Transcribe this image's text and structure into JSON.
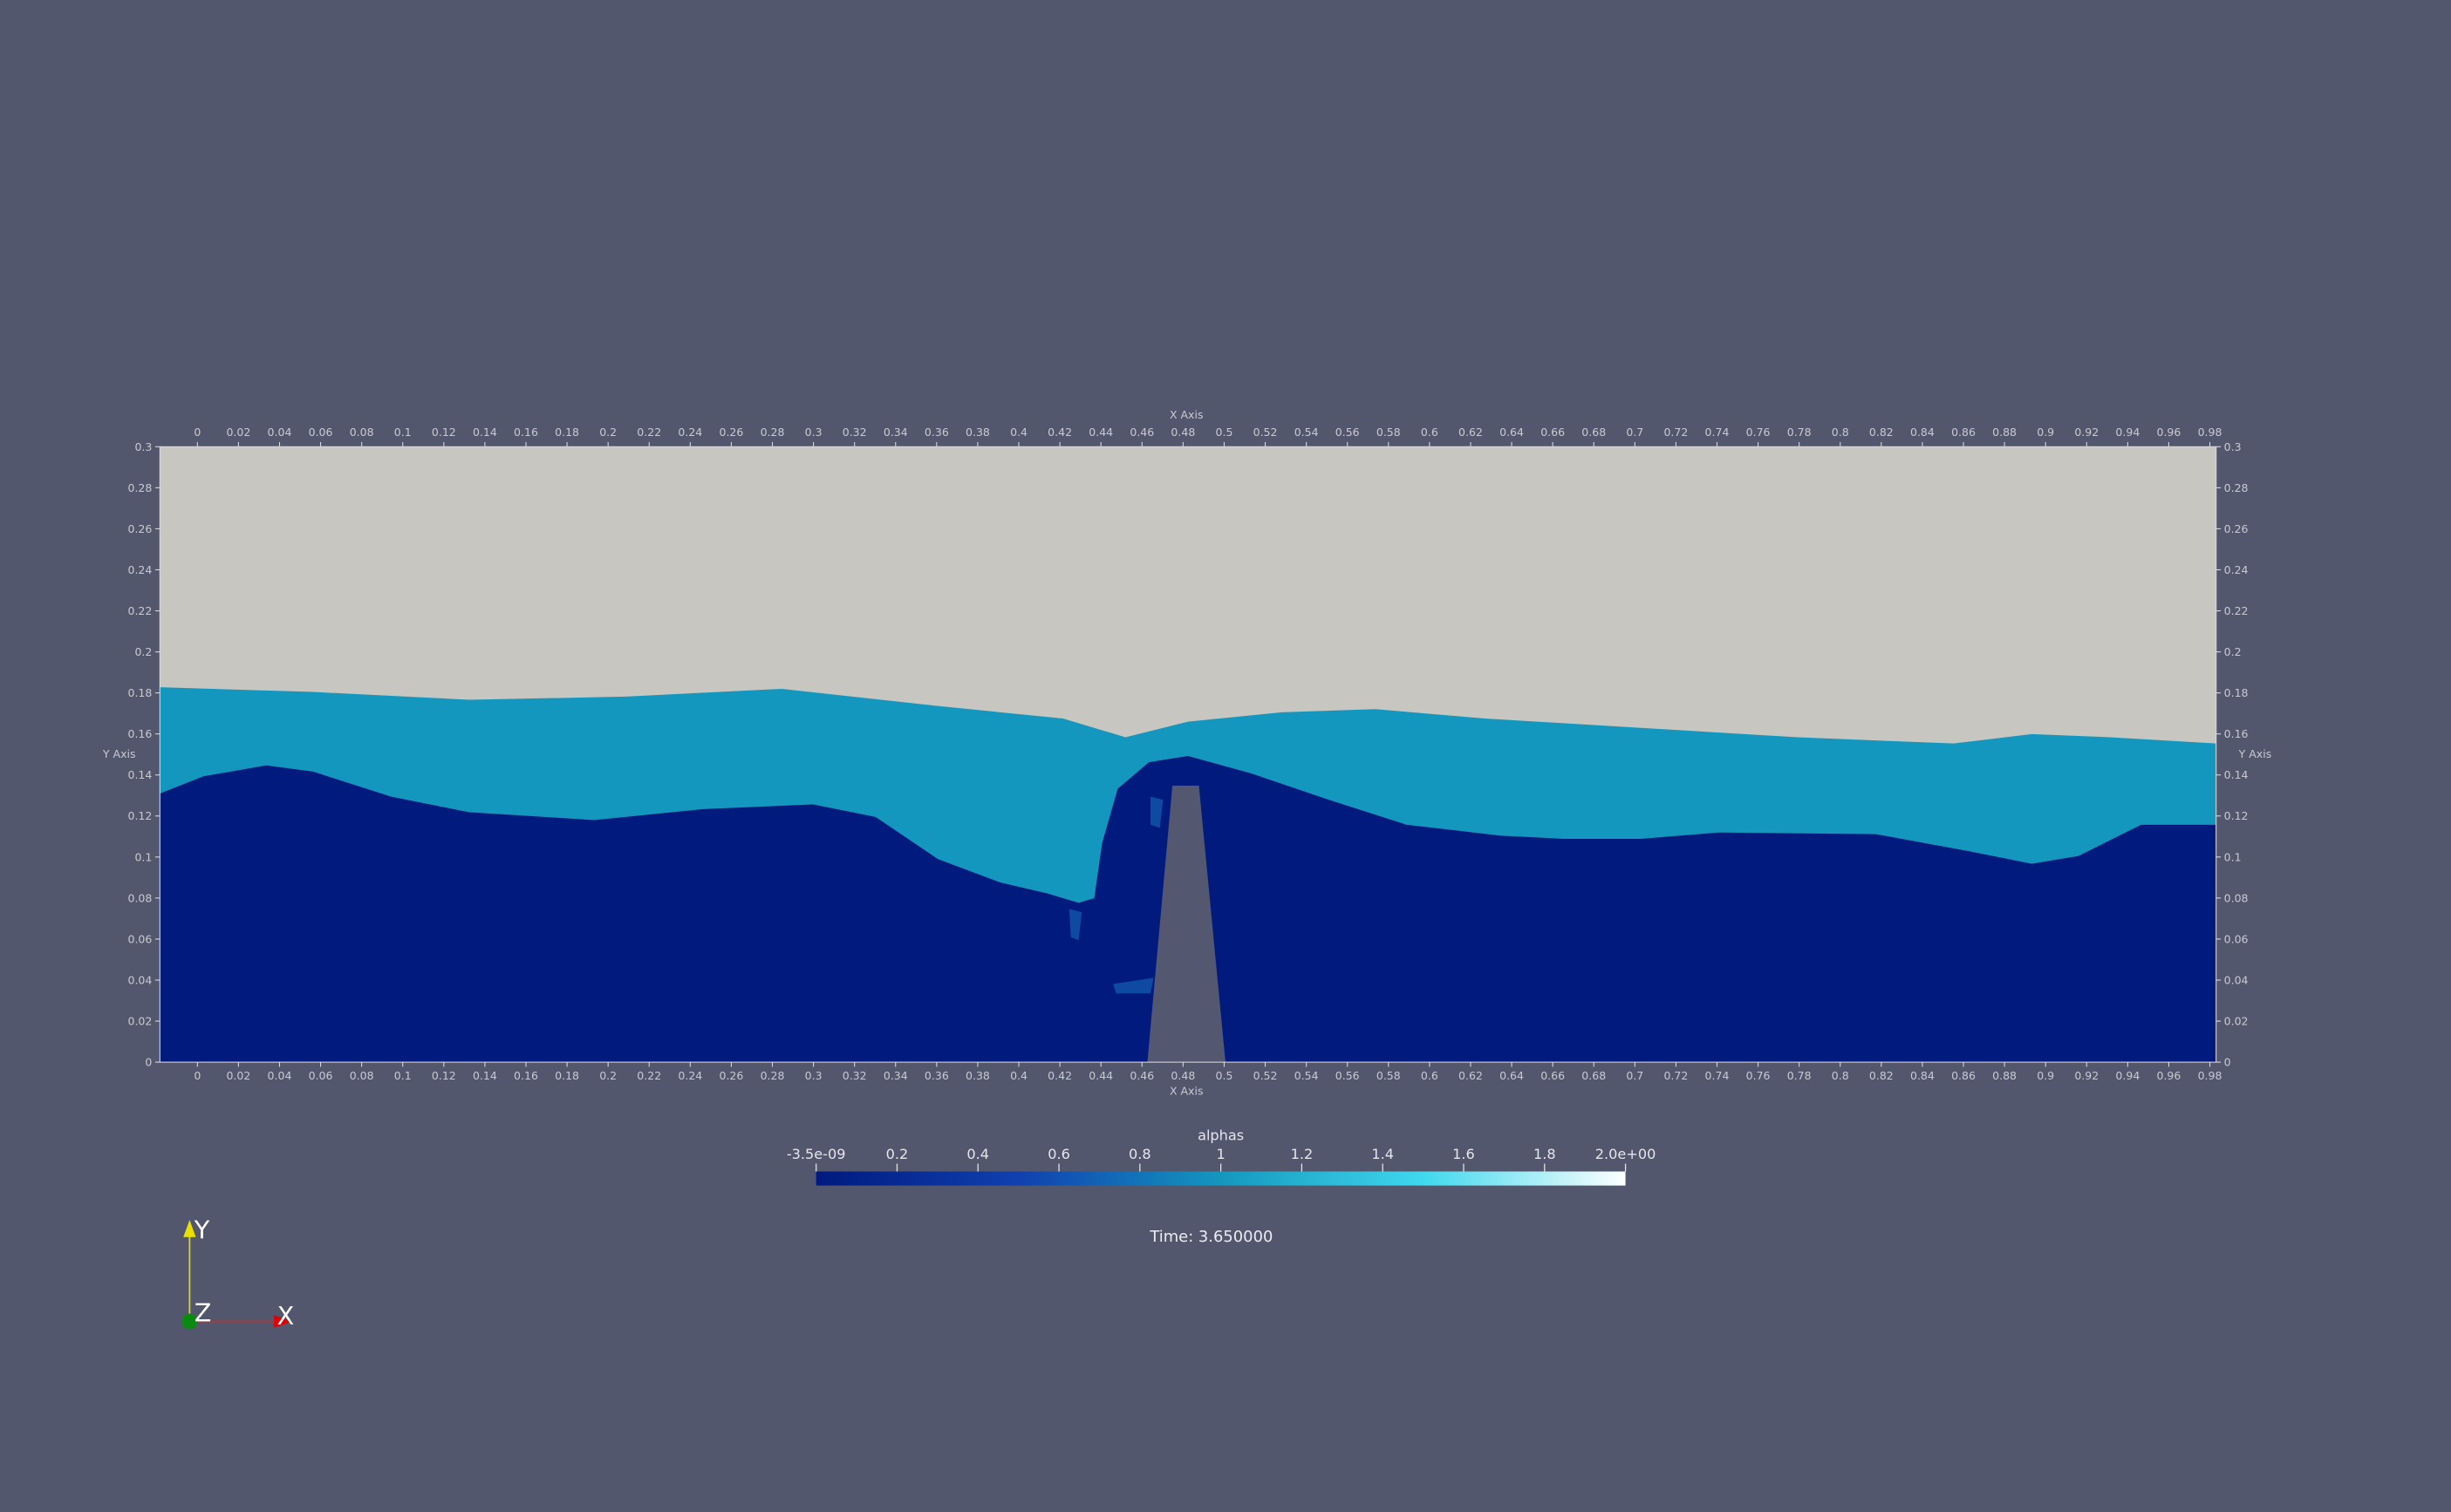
{
  "axes": {
    "x_title_top": "X Axis",
    "x_title_bottom": "X Axis",
    "y_title_left": "Y Axis",
    "y_title_right": "Y Axis",
    "x_tick_labels": [
      "0",
      "0.02",
      "0.04",
      "0.06",
      "0.08",
      "0.1",
      "0.12",
      "0.14",
      "0.16",
      "0.18",
      "0.2",
      "0.22",
      "0.24",
      "0.26",
      "0.28",
      "0.3",
      "0.32",
      "0.34",
      "0.36",
      "0.38",
      "0.4",
      "0.42",
      "0.44",
      "0.46",
      "0.48",
      "0.5",
      "0.52",
      "0.54",
      "0.56",
      "0.58",
      "0.6",
      "0.62",
      "0.64",
      "0.66",
      "0.68",
      "0.7",
      "0.72",
      "0.74",
      "0.76",
      "0.78",
      "0.8",
      "0.82",
      "0.84",
      "0.86",
      "0.88",
      "0.9",
      "0.92",
      "0.94",
      "0.96",
      "0.98"
    ],
    "y_tick_labels": [
      "0",
      "0.02",
      "0.04",
      "0.06",
      "0.08",
      "0.1",
      "0.12",
      "0.14",
      "0.16",
      "0.18",
      "0.2",
      "0.22",
      "0.24",
      "0.26",
      "0.28",
      "0.3"
    ]
  },
  "colorbar": {
    "title": "alphas",
    "labels": [
      "-3.5e-09",
      "0.2",
      "0.4",
      "0.6",
      "0.8",
      "1",
      "1.2",
      "1.4",
      "1.6",
      "1.8",
      "2.0e+00"
    ]
  },
  "time_label": "Time: 3.650000",
  "triad": {
    "y": "Y",
    "z": "Z",
    "x": "X"
  }
}
